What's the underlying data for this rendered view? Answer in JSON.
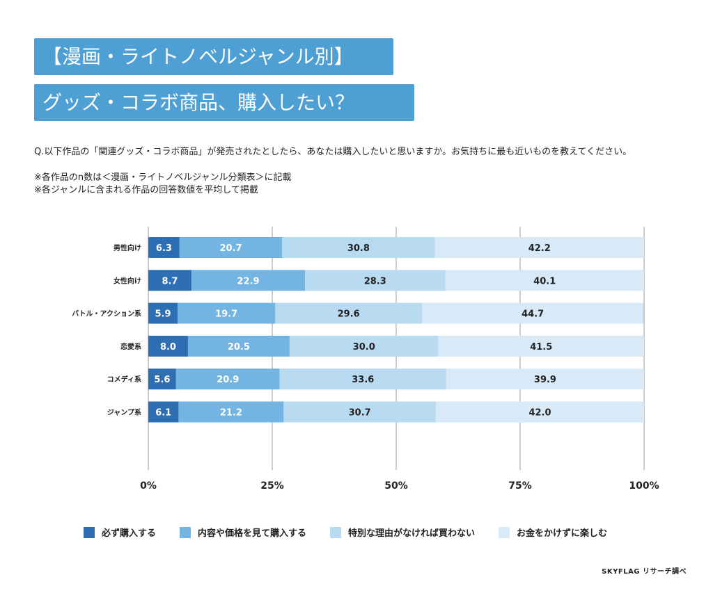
{
  "header": {
    "title_line1": "【漫画・ライトノベルジャンル別】",
    "title_line2": "グッズ・コラボ商品、購入したい？"
  },
  "question": "Q.以下作品の「関連グッズ・コラボ商品」が発売されたとしたら、あなたは購入したいと思いますか。お気持ちに最も近いものを教えてください。",
  "notes": [
    "※各作品のn数は＜漫画・ライトノベルジャンル分類表＞に記載",
    "※各ジャンルに含まれる作品の回答数値を平均して掲載"
  ],
  "credit": "SKYFLAG リサーチ調べ",
  "colors": [
    "#2e6fb3",
    "#74b4e2",
    "#b9dbf1",
    "#d8eaf7"
  ],
  "chart_data": {
    "type": "bar",
    "orientation": "horizontal-stacked-100",
    "categories": [
      "男性向け",
      "女性向け",
      "バトル・アクション系",
      "恋愛系",
      "コメディ系",
      "ジャンプ系"
    ],
    "series": [
      {
        "name": "必ず購入する",
        "values": [
          6.3,
          8.7,
          5.9,
          8.0,
          5.6,
          6.1
        ]
      },
      {
        "name": "内容や価格を見て購入する",
        "values": [
          20.7,
          22.9,
          19.7,
          20.5,
          20.9,
          21.2
        ]
      },
      {
        "name": "特別な理由がなければ買わない",
        "values": [
          30.8,
          28.3,
          29.6,
          30.0,
          33.6,
          30.7
        ]
      },
      {
        "name": "お金をかけずに楽しむ",
        "values": [
          42.2,
          40.1,
          44.7,
          41.5,
          39.9,
          42.0
        ]
      }
    ],
    "x_ticks": [
      "0%",
      "25%",
      "50%",
      "75%",
      "100%"
    ],
    "xlim": [
      0,
      100
    ],
    "grid": true,
    "legend_position": "bottom"
  }
}
